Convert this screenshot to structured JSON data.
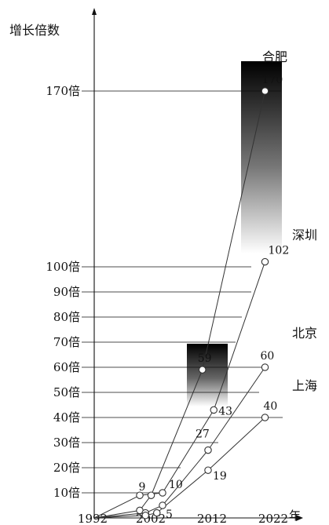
{
  "chart_data": {
    "type": "line",
    "ylabel": "增长倍数",
    "xlabel_suffix": "年",
    "x_ticks": [
      "1992",
      "2002",
      "2012",
      "2022"
    ],
    "y_ticks": [
      {
        "v": 10,
        "label": "10倍"
      },
      {
        "v": 20,
        "label": "20倍"
      },
      {
        "v": 30,
        "label": "30倍"
      },
      {
        "v": 40,
        "label": "40倍"
      },
      {
        "v": 50,
        "label": "50倍"
      },
      {
        "v": 60,
        "label": "60倍"
      },
      {
        "v": 70,
        "label": "70倍"
      },
      {
        "v": 80,
        "label": "80倍"
      },
      {
        "v": 90,
        "label": "90倍"
      },
      {
        "v": 100,
        "label": "100倍"
      },
      {
        "v": 170,
        "label": "170倍"
      }
    ],
    "series": [
      {
        "name": "合肥",
        "points": [
          {
            "x": 1992,
            "y": 0
          },
          {
            "x": 2000,
            "y": 3,
            "label": ""
          },
          {
            "x": 2002,
            "y": 9,
            "label": "9"
          },
          {
            "x": 2011,
            "y": 59,
            "label": "59"
          },
          {
            "x": 2022,
            "y": 170,
            "label": "170"
          }
        ]
      },
      {
        "name": "深圳",
        "points": [
          {
            "x": 1992,
            "y": 0
          },
          {
            "x": 2000,
            "y": 9
          },
          {
            "x": 2004,
            "y": 10,
            "label": "10"
          },
          {
            "x": 2013,
            "y": 43,
            "label": "43"
          },
          {
            "x": 2022,
            "y": 102,
            "label": "102"
          }
        ]
      },
      {
        "name": "北京",
        "points": [
          {
            "x": 1992,
            "y": 0
          },
          {
            "x": 2001,
            "y": 2
          },
          {
            "x": 2004,
            "y": 5,
            "label": "5"
          },
          {
            "x": 2012,
            "y": 27,
            "label": "27"
          },
          {
            "x": 2022,
            "y": 60,
            "label": "60"
          }
        ]
      },
      {
        "name": "上海",
        "points": [
          {
            "x": 1992,
            "y": 0
          },
          {
            "x": 2001,
            "y": 1
          },
          {
            "x": 2003,
            "y": 2
          },
          {
            "x": 2012,
            "y": 19,
            "label": "19"
          },
          {
            "x": 2022,
            "y": 40,
            "label": "40"
          }
        ]
      }
    ]
  }
}
